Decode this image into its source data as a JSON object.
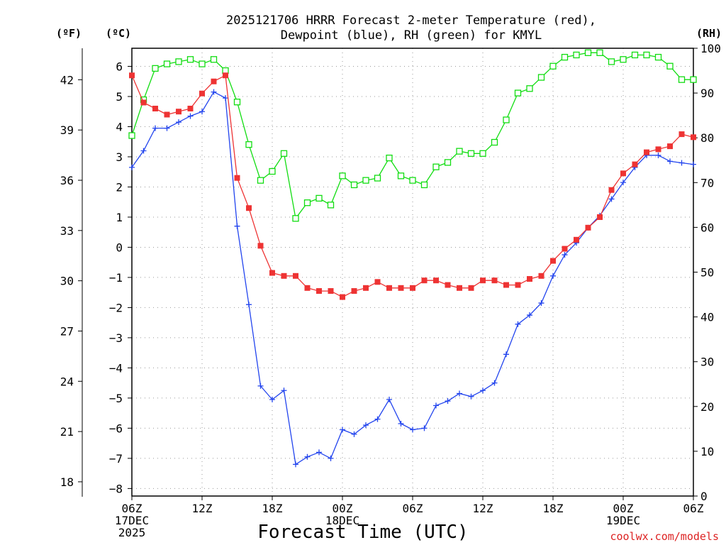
{
  "chart_data": {
    "type": "line",
    "title": [
      "2025121706 HRRR Forecast 2-meter Temperature (red),",
      "Dewpoint (blue), RH (green) for KMYL"
    ],
    "xlabel": "Forecast Time (UTC)",
    "credit": "coolwx.com/models",
    "unit_labels": {
      "fahrenheit": "(ºF)",
      "celsius": "(ºC)",
      "rh": "(RH)"
    },
    "x_range_hours": [
      0,
      48
    ],
    "x_ticks": [
      {
        "hour": 0,
        "lines": [
          "06Z",
          "17DEC",
          "2025"
        ]
      },
      {
        "hour": 6,
        "lines": [
          "12Z"
        ]
      },
      {
        "hour": 12,
        "lines": [
          "18Z"
        ]
      },
      {
        "hour": 18,
        "lines": [
          "00Z",
          "18DEC"
        ]
      },
      {
        "hour": 24,
        "lines": [
          "06Z"
        ]
      },
      {
        "hour": 30,
        "lines": [
          "12Z"
        ]
      },
      {
        "hour": 36,
        "lines": [
          "18Z"
        ]
      },
      {
        "hour": 42,
        "lines": [
          "00Z",
          "19DEC"
        ]
      },
      {
        "hour": 48,
        "lines": [
          "06Z"
        ]
      }
    ],
    "celsius_axis": {
      "range": [
        -8.25,
        6.6
      ],
      "ticks": [
        "6",
        "5",
        "4",
        "3",
        "2",
        "1",
        "0",
        "−1",
        "−2",
        "−3",
        "−4",
        "−5",
        "−6",
        "−7",
        "−8"
      ]
    },
    "fahrenheit_axis": {
      "ticks": [
        "42",
        "39",
        "36",
        "33",
        "30",
        "27",
        "24",
        "21",
        "18"
      ]
    },
    "rh_axis": {
      "range": [
        0,
        100
      ],
      "ticks": [
        "100",
        "90",
        "80",
        "70",
        "60",
        "50",
        "40",
        "30",
        "20",
        "10",
        "0"
      ]
    },
    "series": [
      {
        "name": "Temperature",
        "unit": "C",
        "color": "#ee3333",
        "marker": "filled-square",
        "values": [
          5.7,
          4.8,
          4.6,
          4.4,
          4.5,
          4.6,
          5.1,
          5.5,
          5.7,
          2.3,
          1.3,
          0.05,
          -0.85,
          -0.95,
          -0.95,
          -1.35,
          -1.45,
          -1.45,
          -1.65,
          -1.45,
          -1.35,
          -1.15,
          -1.35,
          -1.35,
          -1.35,
          -1.1,
          -1.1,
          -1.25,
          -1.35,
          -1.35,
          -1.1,
          -1.1,
          -1.25,
          -1.25,
          -1.05,
          -0.95,
          -0.45,
          -0.05,
          0.25,
          0.65,
          1.0,
          1.9,
          2.45,
          2.75,
          3.15,
          3.25,
          3.35,
          3.75,
          3.65
        ]
      },
      {
        "name": "Dewpoint",
        "unit": "C",
        "color": "#2244ee",
        "marker": "plus",
        "values": [
          2.65,
          3.2,
          3.95,
          3.95,
          4.15,
          4.35,
          4.5,
          5.15,
          4.95,
          0.7,
          -1.9,
          -4.6,
          -5.05,
          -4.75,
          -7.2,
          -6.95,
          -6.8,
          -7.0,
          -6.05,
          -6.2,
          -5.9,
          -5.7,
          -5.05,
          -5.85,
          -6.05,
          -6.0,
          -5.25,
          -5.1,
          -4.85,
          -4.95,
          -4.75,
          -4.5,
          -3.55,
          -2.55,
          -2.25,
          -1.85,
          -0.95,
          -0.25,
          0.15,
          0.65,
          1.05,
          1.6,
          2.15,
          2.65,
          3.05,
          3.05,
          2.85,
          2.8,
          2.75
        ]
      },
      {
        "name": "RH",
        "unit": "%",
        "color": "#11dd11",
        "marker": "open-square",
        "values": [
          80.5,
          88.5,
          95.5,
          96.5,
          97.0,
          97.5,
          96.5,
          97.5,
          95.0,
          88.0,
          78.5,
          70.5,
          72.5,
          76.5,
          62.0,
          65.5,
          66.5,
          65.0,
          71.5,
          69.5,
          70.5,
          71.0,
          75.5,
          71.5,
          70.5,
          69.5,
          73.5,
          74.5,
          77.0,
          76.5,
          76.5,
          79.0,
          84.0,
          90.0,
          91.0,
          93.5,
          96.0,
          98.0,
          98.5,
          99.0,
          99.0,
          97.0,
          97.5,
          98.5,
          98.5,
          98.0,
          96.0,
          93.0,
          93.0
        ]
      }
    ]
  }
}
